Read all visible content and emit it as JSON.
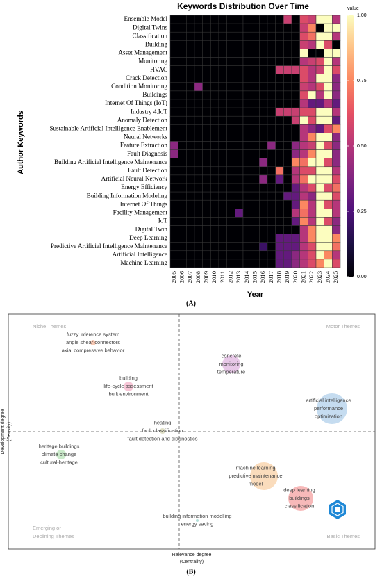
{
  "chart_data": {
    "type": "heatmap",
    "title": "Keywords Distribution Over Time",
    "x_label": "Year",
    "y_label": "Author Keywords",
    "x": [
      2005,
      2006,
      2007,
      2008,
      2009,
      2010,
      2011,
      2012,
      2013,
      2014,
      2015,
      2016,
      2017,
      2018,
      2019,
      2020,
      2021,
      2022,
      2023,
      2024,
      2025
    ],
    "y": [
      "Ensemble Model",
      "Digital Twins",
      "Classification",
      "Building",
      "Asset Management",
      "Monitoring",
      "HVAC",
      "Crack Detection",
      "Condition Monitoring",
      "Buildings",
      "Internet Of Things (IoT)",
      "Industry 4.IoT",
      "Anomaly Detection",
      "Sustainable Artificial Intelligence Enablement",
      "Neural Networks",
      "Feature Extraction",
      "Fault Diagnosis",
      "Building Artificial Intelligence Maintenance",
      "Fault Detection",
      "Artificial Neural Network",
      "Energy Efficiency",
      "Building Information Modeling",
      "Internet Of Things",
      "Facility Management",
      "IoT",
      "Digital Twin",
      "Deep Learning",
      "Predictive Artificial Intelligence Maintenance",
      "Artificial Intelligence",
      "Machine Learning"
    ],
    "values": [
      [
        0,
        0,
        0,
        0,
        0,
        0,
        0,
        0,
        0,
        0,
        0,
        0,
        0,
        0,
        0.55,
        0,
        0.6,
        0.55,
        1,
        1,
        0.5
      ],
      [
        0,
        0,
        0,
        0,
        0,
        0,
        0,
        0,
        0,
        0,
        0,
        0,
        0,
        0,
        0,
        0,
        0.55,
        0.75,
        0,
        1,
        1
      ],
      [
        0,
        0,
        0,
        0,
        0,
        0,
        0,
        0,
        0,
        0,
        0,
        0,
        0,
        0,
        0,
        0,
        0.6,
        0.7,
        1,
        1,
        0.5
      ],
      [
        0,
        0,
        0,
        0,
        0,
        0,
        0,
        0,
        0,
        0,
        0,
        0,
        0,
        0,
        0,
        0,
        0.55,
        0.5,
        1,
        0.6,
        0
      ],
      [
        0,
        0,
        0,
        0,
        0,
        0,
        0,
        0,
        0,
        0,
        0,
        0,
        0,
        0,
        0,
        0,
        1,
        0,
        0,
        1,
        1
      ],
      [
        0,
        0,
        0,
        0,
        0,
        0,
        0,
        0,
        0,
        0,
        0,
        0,
        0,
        0,
        0,
        0,
        0.5,
        0.55,
        0.6,
        1,
        0.5
      ],
      [
        0,
        0,
        0,
        0,
        0,
        0,
        0,
        0,
        0,
        0,
        0,
        0,
        0,
        0.55,
        0.55,
        0.55,
        0.6,
        0.5,
        0.55,
        1,
        0.6
      ],
      [
        0,
        0,
        0,
        0,
        0,
        0,
        0,
        0,
        0,
        0,
        0,
        0,
        0,
        0,
        0,
        0,
        0.6,
        0.5,
        1,
        1,
        0.4
      ],
      [
        0,
        0,
        0,
        0.4,
        0,
        0,
        0,
        0,
        0,
        0,
        0,
        0,
        0,
        0,
        0,
        0,
        0.55,
        0.5,
        0.6,
        1,
        0.4
      ],
      [
        0,
        0,
        0,
        0,
        0,
        0,
        0,
        0,
        0,
        0,
        0,
        0,
        0,
        0,
        0,
        0,
        0.6,
        1,
        0.5,
        1,
        0.4
      ],
      [
        0,
        0,
        0,
        0,
        0,
        0,
        0,
        0,
        0,
        0,
        0,
        0,
        0,
        0,
        0,
        0,
        0.5,
        0.3,
        0.3,
        0.5,
        0.3
      ],
      [
        0,
        0,
        0,
        0,
        0,
        0,
        0,
        0,
        0,
        0,
        0,
        0,
        0,
        0.55,
        0.55,
        0.55,
        0.6,
        0.6,
        1,
        1,
        0.5
      ],
      [
        0,
        0,
        0,
        0,
        0,
        0,
        0,
        0,
        0,
        0,
        0,
        0,
        0,
        0,
        0,
        0.55,
        1,
        0.6,
        1,
        1,
        0.3
      ],
      [
        0,
        0,
        0,
        0,
        0,
        0,
        0,
        0,
        0,
        0,
        0,
        0,
        0,
        0,
        0,
        0,
        0.5,
        0.4,
        0.3,
        0.6,
        0.75
      ],
      [
        0,
        0,
        0,
        0,
        0,
        0,
        0,
        0,
        0,
        0,
        0,
        0,
        0,
        0,
        0,
        0,
        0.5,
        0.75,
        1,
        1,
        0.4
      ],
      [
        0.4,
        0,
        0,
        0,
        0,
        0,
        0,
        0,
        0,
        0,
        0,
        0,
        0.4,
        0,
        0,
        0.4,
        0.5,
        0.55,
        1,
        0.6,
        0.4
      ],
      [
        0.4,
        0,
        0,
        0,
        0,
        0,
        0,
        0,
        0,
        0,
        0,
        0,
        0,
        0,
        0,
        0.4,
        0.5,
        0.75,
        1,
        1,
        0.4
      ],
      [
        0,
        0,
        0,
        0,
        0,
        0,
        0,
        0,
        0,
        0,
        0,
        0.4,
        0,
        0,
        0,
        0.75,
        0.7,
        1,
        1,
        0.6,
        0.4
      ],
      [
        0,
        0,
        0,
        0,
        0,
        0,
        0,
        0,
        0,
        0,
        0,
        0,
        0,
        0.7,
        0,
        0.5,
        0.6,
        0.6,
        1,
        1,
        0.5
      ],
      [
        0,
        0,
        0,
        0,
        0,
        0,
        0,
        0,
        0,
        0,
        0,
        0.4,
        0,
        0.3,
        0,
        0.5,
        0.7,
        1,
        1,
        1,
        0.6
      ],
      [
        0,
        0,
        0,
        0,
        0,
        0,
        0,
        0,
        0,
        0,
        0,
        0,
        0,
        0,
        0,
        0.3,
        0.5,
        0.6,
        1,
        0.6,
        0.7
      ],
      [
        0,
        0,
        0,
        0,
        0,
        0,
        0,
        0,
        0,
        0,
        0,
        0,
        0,
        0,
        0.3,
        0.3,
        0.5,
        0.4,
        1,
        1,
        0.6
      ],
      [
        0,
        0,
        0,
        0,
        0,
        0,
        0,
        0,
        0,
        0,
        0,
        0,
        0,
        0,
        0,
        0.3,
        0.75,
        0.5,
        1,
        0.6,
        0.5
      ],
      [
        0,
        0,
        0,
        0,
        0,
        0,
        0,
        0,
        0.3,
        0,
        0,
        0,
        0,
        0,
        0,
        0.5,
        0.7,
        0.5,
        1,
        1,
        0.5
      ],
      [
        0,
        0,
        0,
        0,
        0,
        0,
        0,
        0,
        0,
        0,
        0,
        0,
        0,
        0,
        0,
        0.3,
        0.75,
        0.5,
        1,
        0.6,
        0.4
      ],
      [
        0,
        0,
        0,
        0,
        0,
        0,
        0,
        0,
        0,
        0,
        0,
        0,
        0,
        0,
        0,
        0,
        0.5,
        0.75,
        1,
        1,
        0.4
      ],
      [
        0,
        0,
        0,
        0,
        0,
        0,
        0,
        0,
        0,
        0,
        0,
        0,
        0,
        0.3,
        0.3,
        0.3,
        0.5,
        0.75,
        1,
        1,
        0.75
      ],
      [
        0,
        0,
        0,
        0,
        0,
        0,
        0,
        0,
        0,
        0,
        0,
        0.2,
        0,
        0.3,
        0.3,
        0.3,
        0.5,
        0.6,
        1,
        1,
        0.7
      ],
      [
        0,
        0,
        0,
        0,
        0,
        0,
        0,
        0,
        0,
        0,
        0,
        0,
        0,
        0.3,
        0.3,
        0.4,
        0.5,
        0.6,
        1,
        0.75,
        0.5
      ],
      [
        0,
        0,
        0,
        0,
        0,
        0,
        0,
        0,
        0,
        0,
        0,
        0,
        0,
        0.3,
        0.3,
        0.4,
        0.5,
        0.6,
        0.75,
        1,
        0.6
      ]
    ],
    "colorbar_title": "value",
    "clim": [
      0,
      1
    ],
    "cticks": [
      {
        "value": 0,
        "label": "0.00"
      },
      {
        "value": 0.25,
        "label": "0.25"
      },
      {
        "value": 0.5,
        "label": "0.50"
      },
      {
        "value": 0.75,
        "label": "0.75"
      },
      {
        "value": 1,
        "label": "1.00"
      }
    ],
    "colormap": [
      "#000004",
      "#1c1044",
      "#4f127b",
      "#812581",
      "#b5367a",
      "#e55064",
      "#fb8761",
      "#fec287",
      "#fcfdbf"
    ],
    "grid": true
  },
  "panel_a_label": "(A)",
  "thematic_map": {
    "x_label": [
      "Relevance degree",
      "(Centrality)"
    ],
    "y_label": [
      "Development degree",
      "(Density)"
    ],
    "quadrants": {
      "niche": [
        "Niche Themes"
      ],
      "motor": [
        "Motor Themes"
      ],
      "emerging": [
        "Emerging or",
        "Declining Themes"
      ],
      "basic": [
        "Basic Themes"
      ]
    },
    "clusters": [
      {
        "labels": [
          "fuzzy inference system",
          "angle shear connectors",
          "axial compressive behavior"
        ],
        "color": "#f4a582"
      },
      {
        "labels": [
          "concrete",
          "monitoring",
          "temperature"
        ],
        "color": "#d9a3d9"
      },
      {
        "labels": [
          "building",
          "life-cycle assessment",
          "built environment"
        ],
        "color": "#f2a0bd"
      },
      {
        "labels": [
          "artificial intelligence",
          "performance",
          "optimization"
        ],
        "color": "#9ec5e6"
      },
      {
        "labels": [
          "heating",
          "fault classification",
          "fault detection and diagnostics"
        ],
        "color": "#c9c9a0"
      },
      {
        "labels": [
          "heritage buildings",
          "climate change",
          "cultural-heritage"
        ],
        "color": "#a6dca6"
      },
      {
        "labels": [
          "machine learning",
          "predictive maintenance",
          "model"
        ],
        "color": "#f7c48f"
      },
      {
        "labels": [
          "deep learning",
          "buildings",
          "classification"
        ],
        "color": "#f28a8a"
      },
      {
        "labels": [
          "building information modelling",
          "energy saving"
        ],
        "color": "#7fc9c0"
      }
    ]
  },
  "panel_b_label": "(B)"
}
